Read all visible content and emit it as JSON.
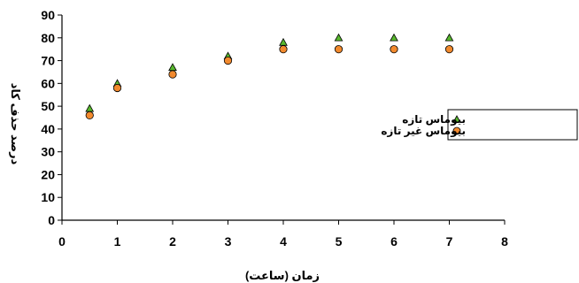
{
  "chart_data": {
    "type": "scatter",
    "title": "",
    "xlabel": "زمان (ساعت)",
    "ylabel": "درصد حذف کاد",
    "xlim": [
      0,
      8
    ],
    "ylim": [
      0,
      90
    ],
    "x_ticks": [
      "0",
      "1",
      "2",
      "3",
      "4",
      "5",
      "6",
      "7",
      "8"
    ],
    "y_ticks": [
      "0",
      "10",
      "20",
      "30",
      "40",
      "50",
      "60",
      "70",
      "80",
      "90"
    ],
    "grid": false,
    "legend_position": "right",
    "series": [
      {
        "name": "بیوماس تازه",
        "marker": "triangle",
        "color": "#58b82e",
        "points": [
          {
            "x": 0.5,
            "y": 49
          },
          {
            "x": 1,
            "y": 60
          },
          {
            "x": 2,
            "y": 67
          },
          {
            "x": 3,
            "y": 72
          },
          {
            "x": 4,
            "y": 78
          },
          {
            "x": 5,
            "y": 80
          },
          {
            "x": 6,
            "y": 80
          },
          {
            "x": 7,
            "y": 80
          }
        ]
      },
      {
        "name": "بیوماس غیر تازه",
        "marker": "circle",
        "color": "#f28a2e",
        "points": [
          {
            "x": 0.5,
            "y": 46
          },
          {
            "x": 1,
            "y": 58
          },
          {
            "x": 2,
            "y": 64
          },
          {
            "x": 3,
            "y": 70
          },
          {
            "x": 4,
            "y": 75
          },
          {
            "x": 5,
            "y": 75
          },
          {
            "x": 6,
            "y": 75
          },
          {
            "x": 7,
            "y": 75
          }
        ]
      }
    ]
  }
}
